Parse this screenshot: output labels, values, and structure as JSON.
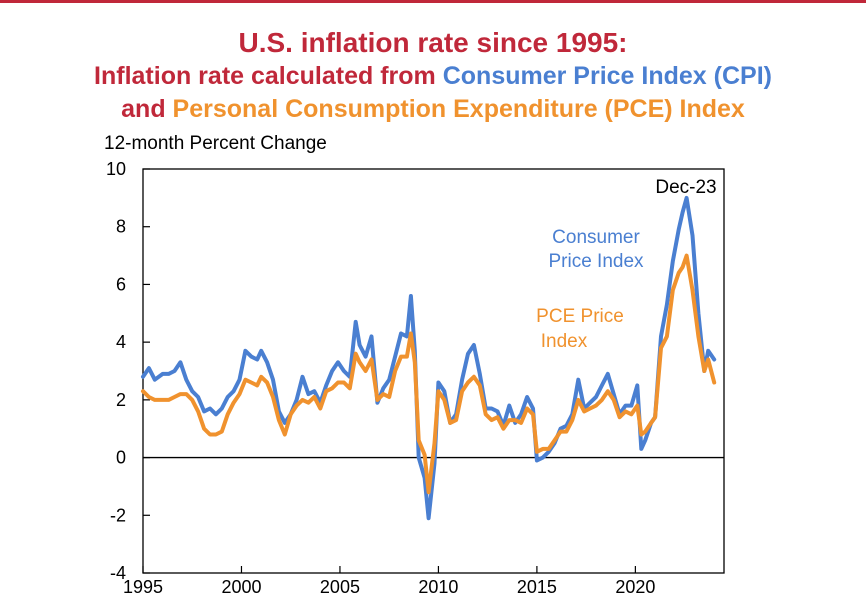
{
  "colors": {
    "title": "#C0283A",
    "cpi": "#4A7FD1",
    "pce": "#F0922E",
    "rule": "#C0283A"
  },
  "title": {
    "line1": "U.S. inflation rate since 1995:",
    "line2_prefix": "Inflation rate calculated from ",
    "line2_cpi": "Consumer Price Index (CPI)",
    "line3_prefix": "and ",
    "line3_pce": "Personal Consumption Expenditure (PCE) Index"
  },
  "chart_data": {
    "type": "line",
    "ylabel": "12-month Percent Change",
    "ylim": [
      -4,
      10
    ],
    "yticks": [
      "10",
      "8",
      "6",
      "4",
      "2",
      "0",
      "-2",
      "-4"
    ],
    "xlim": [
      1995,
      2024.5
    ],
    "xticks": [
      "1995",
      "2000",
      "2005",
      "2010",
      "2015",
      "2020"
    ],
    "annotations": {
      "end_label": "Dec-23",
      "cpi_label_line1": "Consumer",
      "cpi_label_line2": "Price Index",
      "pce_label_line1": "PCE Price",
      "pce_label_line2": "Index"
    },
    "series": [
      {
        "name": "Consumer Price Index",
        "x": [
          1995.0,
          1995.3,
          1995.6,
          1996.0,
          1996.3,
          1996.6,
          1996.9,
          1997.2,
          1997.5,
          1997.8,
          1998.1,
          1998.4,
          1998.7,
          1999.0,
          1999.3,
          1999.6,
          1999.9,
          2000.2,
          2000.5,
          2000.8,
          2001.0,
          2001.3,
          2001.6,
          2001.9,
          2002.2,
          2002.5,
          2002.8,
          2003.1,
          2003.4,
          2003.7,
          2004.0,
          2004.3,
          2004.6,
          2004.9,
          2005.2,
          2005.5,
          2005.8,
          2006.0,
          2006.3,
          2006.6,
          2006.9,
          2007.2,
          2007.5,
          2007.8,
          2008.1,
          2008.4,
          2008.6,
          2008.8,
          2009.0,
          2009.3,
          2009.5,
          2009.8,
          2010.0,
          2010.3,
          2010.6,
          2010.9,
          2011.2,
          2011.5,
          2011.8,
          2012.1,
          2012.4,
          2012.7,
          2013.0,
          2013.3,
          2013.6,
          2013.9,
          2014.2,
          2014.5,
          2014.8,
          2015.0,
          2015.3,
          2015.6,
          2015.9,
          2016.2,
          2016.5,
          2016.8,
          2017.1,
          2017.4,
          2017.7,
          2018.0,
          2018.3,
          2018.6,
          2018.9,
          2019.2,
          2019.5,
          2019.8,
          2020.1,
          2020.3,
          2020.5,
          2020.8,
          2021.0,
          2021.3,
          2021.6,
          2021.9,
          2022.2,
          2022.4,
          2022.6,
          2022.9,
          2023.2,
          2023.5,
          2023.7,
          2024.0
        ],
        "values": [
          2.8,
          3.1,
          2.7,
          2.9,
          2.9,
          3.0,
          3.3,
          2.7,
          2.3,
          2.1,
          1.6,
          1.7,
          1.5,
          1.7,
          2.1,
          2.3,
          2.7,
          3.7,
          3.5,
          3.4,
          3.7,
          3.3,
          2.7,
          1.6,
          1.2,
          1.5,
          2.0,
          2.8,
          2.2,
          2.3,
          1.9,
          2.5,
          3.0,
          3.3,
          3.0,
          2.8,
          4.7,
          3.9,
          3.5,
          4.2,
          1.9,
          2.4,
          2.7,
          3.5,
          4.3,
          4.2,
          5.6,
          3.7,
          0.0,
          -0.7,
          -2.1,
          -0.2,
          2.6,
          2.3,
          1.2,
          1.5,
          2.7,
          3.6,
          3.9,
          2.9,
          1.7,
          1.7,
          1.6,
          1.1,
          1.8,
          1.2,
          1.5,
          2.1,
          1.7,
          -0.1,
          0.0,
          0.2,
          0.5,
          1.0,
          1.1,
          1.5,
          2.7,
          1.7,
          1.9,
          2.1,
          2.5,
          2.9,
          2.2,
          1.5,
          1.8,
          1.8,
          2.5,
          0.3,
          0.6,
          1.2,
          1.4,
          4.2,
          5.3,
          6.8,
          7.9,
          8.5,
          9.0,
          7.7,
          5.0,
          3.0,
          3.7,
          3.4
        ]
      },
      {
        "name": "PCE Price Index",
        "x": [
          1995.0,
          1995.3,
          1995.6,
          1996.0,
          1996.3,
          1996.6,
          1996.9,
          1997.2,
          1997.5,
          1997.8,
          1998.1,
          1998.4,
          1998.7,
          1999.0,
          1999.3,
          1999.6,
          1999.9,
          2000.2,
          2000.5,
          2000.8,
          2001.0,
          2001.3,
          2001.6,
          2001.9,
          2002.2,
          2002.5,
          2002.8,
          2003.1,
          2003.4,
          2003.7,
          2004.0,
          2004.3,
          2004.6,
          2004.9,
          2005.2,
          2005.5,
          2005.8,
          2006.0,
          2006.3,
          2006.6,
          2006.9,
          2007.2,
          2007.5,
          2007.8,
          2008.1,
          2008.4,
          2008.6,
          2008.8,
          2009.0,
          2009.3,
          2009.5,
          2009.8,
          2010.0,
          2010.3,
          2010.6,
          2010.9,
          2011.2,
          2011.5,
          2011.8,
          2012.1,
          2012.4,
          2012.7,
          2013.0,
          2013.3,
          2013.6,
          2013.9,
          2014.2,
          2014.5,
          2014.8,
          2015.0,
          2015.3,
          2015.6,
          2015.9,
          2016.2,
          2016.5,
          2016.8,
          2017.1,
          2017.4,
          2017.7,
          2018.0,
          2018.3,
          2018.6,
          2018.9,
          2019.2,
          2019.5,
          2019.8,
          2020.1,
          2020.3,
          2020.5,
          2020.8,
          2021.0,
          2021.3,
          2021.6,
          2021.9,
          2022.2,
          2022.4,
          2022.6,
          2022.9,
          2023.2,
          2023.5,
          2023.7,
          2024.0
        ],
        "values": [
          2.3,
          2.1,
          2.0,
          2.0,
          2.0,
          2.1,
          2.2,
          2.2,
          2.0,
          1.6,
          1.0,
          0.8,
          0.8,
          0.9,
          1.5,
          1.9,
          2.2,
          2.7,
          2.6,
          2.5,
          2.8,
          2.6,
          2.1,
          1.3,
          0.8,
          1.5,
          1.8,
          2.0,
          1.9,
          2.1,
          1.7,
          2.3,
          2.4,
          2.6,
          2.6,
          2.4,
          3.6,
          3.3,
          3.0,
          3.4,
          2.0,
          2.2,
          2.1,
          3.0,
          3.5,
          3.5,
          4.3,
          3.3,
          0.6,
          0.1,
          -1.2,
          0.5,
          2.3,
          2.0,
          1.2,
          1.3,
          2.3,
          2.6,
          2.8,
          2.5,
          1.5,
          1.3,
          1.4,
          1.0,
          1.3,
          1.3,
          1.2,
          1.7,
          1.5,
          0.2,
          0.3,
          0.3,
          0.6,
          0.9,
          0.9,
          1.3,
          2.0,
          1.6,
          1.7,
          1.8,
          2.0,
          2.3,
          2.0,
          1.4,
          1.6,
          1.5,
          1.8,
          0.8,
          0.9,
          1.2,
          1.4,
          3.8,
          4.2,
          5.8,
          6.4,
          6.6,
          7.0,
          5.8,
          4.2,
          3.0,
          3.4,
          2.6
        ]
      }
    ]
  }
}
